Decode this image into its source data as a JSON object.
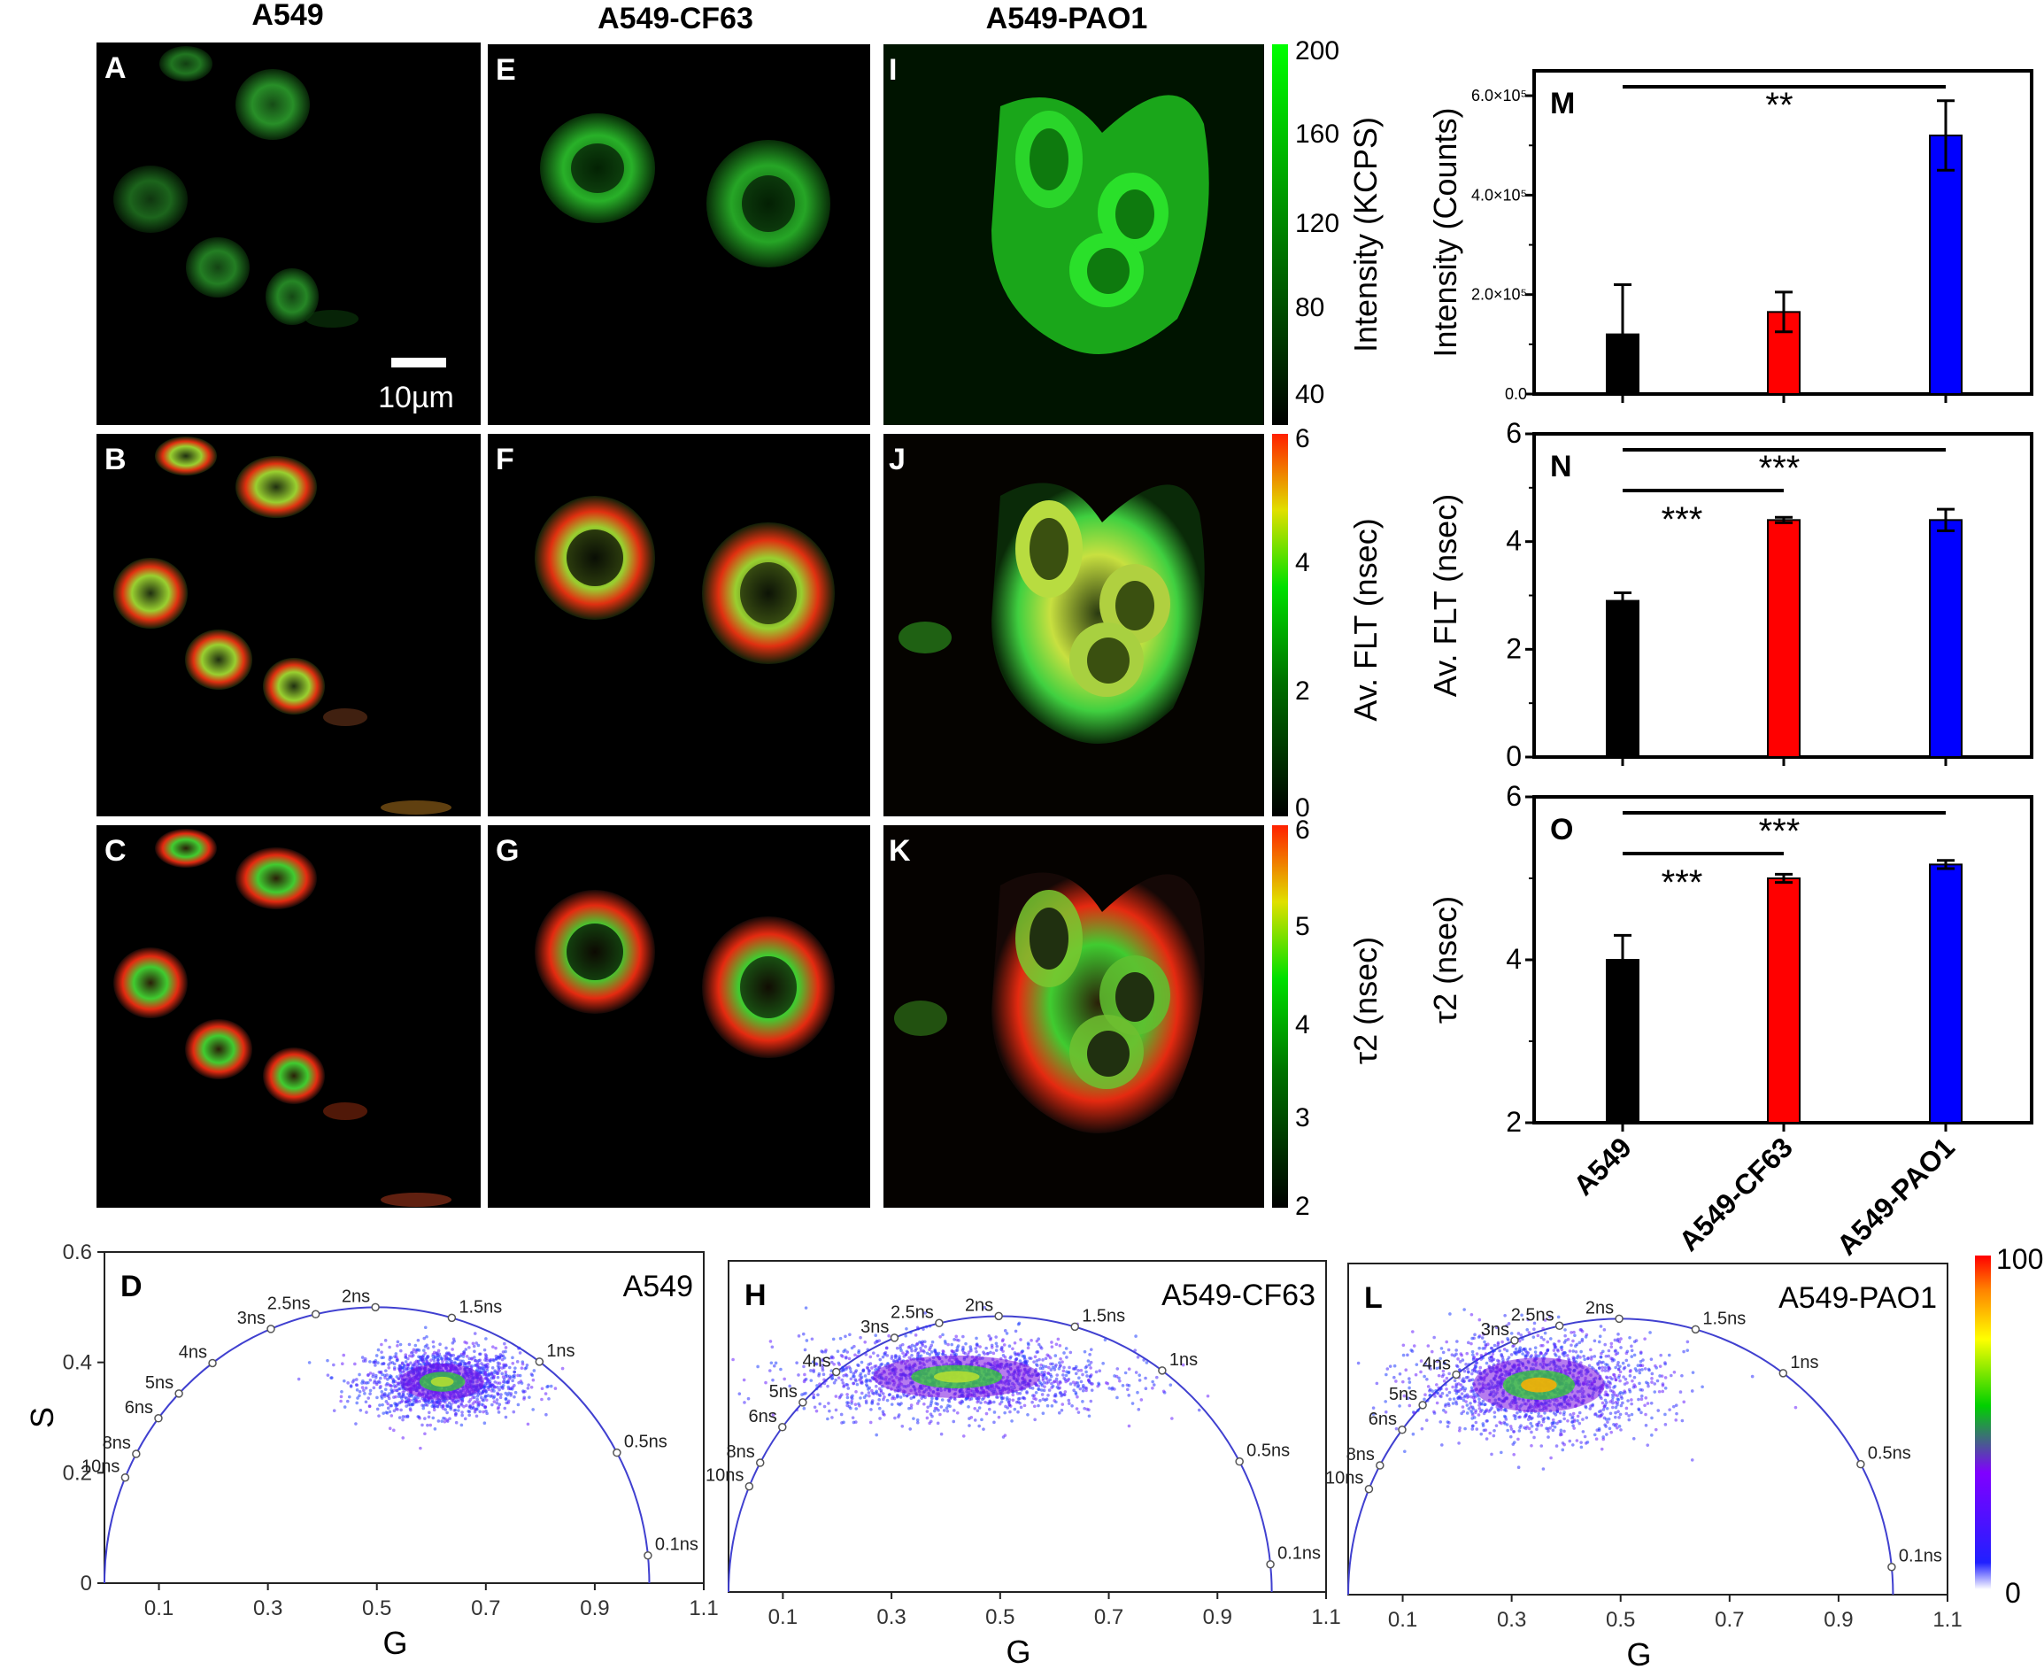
{
  "column_titles": [
    "A549",
    "A549-CF63",
    "A549-PAO1"
  ],
  "panel_letters": {
    "intensity_row": [
      "A",
      "E",
      "I"
    ],
    "avflt_row": [
      "B",
      "F",
      "J"
    ],
    "tau2_row": [
      "C",
      "G",
      "K"
    ]
  },
  "scale_bar_label": "10µm",
  "colorbars": [
    {
      "label": "Intensity (KCPS)",
      "ticks": [
        "200",
        "160",
        "120",
        "80",
        "40"
      ],
      "low": "#000000",
      "high": "#00ff00"
    },
    {
      "label": "Av. FLT (nsec)",
      "ticks": [
        "6",
        "4",
        "2",
        "0"
      ],
      "low": "#000000",
      "mid": "#00e000",
      "high": "#ff2000"
    },
    {
      "label": "τ2 (nsec)",
      "ticks": [
        "6",
        "5",
        "4",
        "3",
        "2"
      ],
      "low": "#000000",
      "mid": "#00e000",
      "high": "#ff2000"
    }
  ],
  "bar_categories": [
    "A549",
    "A549-CF63",
    "A549-PAO1"
  ],
  "bar_colors": [
    "#000000",
    "#ff0000",
    "#0000ff"
  ],
  "chart_data": [
    {
      "type": "bar",
      "letter": "M",
      "ylabel": "Intensity (Counts)",
      "ylim": [
        0,
        650000
      ],
      "ytick_labels": [
        "0.0",
        "2.0×10⁵",
        "4.0×10⁵",
        "6.0×10⁵"
      ],
      "ytick_values": [
        0,
        200000,
        400000,
        600000
      ],
      "values": [
        120000,
        165000,
        520000
      ],
      "errors": [
        100000,
        40000,
        70000
      ],
      "significance": [
        {
          "from": 0,
          "to": 2,
          "label": "**"
        }
      ]
    },
    {
      "type": "bar",
      "letter": "N",
      "ylabel": "Av. FLT (nsec)",
      "ylim": [
        0,
        6
      ],
      "ytick_labels": [
        "0",
        "2",
        "4",
        "6"
      ],
      "ytick_values": [
        0,
        2,
        4,
        6
      ],
      "values": [
        2.9,
        4.4,
        4.4
      ],
      "errors": [
        0.15,
        0.05,
        0.2
      ],
      "significance": [
        {
          "from": 0,
          "to": 2,
          "label": "***"
        },
        {
          "from": 0,
          "to": 1,
          "label": "***"
        }
      ]
    },
    {
      "type": "bar",
      "letter": "O",
      "ylabel": "τ2 (nsec)",
      "ylim": [
        2,
        6
      ],
      "ytick_labels": [
        "2",
        "4",
        "6"
      ],
      "ytick_values": [
        2,
        4,
        6
      ],
      "values": [
        4.0,
        5.0,
        5.17
      ],
      "errors": [
        0.3,
        0.05,
        0.05
      ],
      "significance": [
        {
          "from": 0,
          "to": 2,
          "label": "***"
        },
        {
          "from": 0,
          "to": 1,
          "label": "***"
        }
      ]
    },
    {
      "type": "scatter",
      "letter": "D",
      "name": "A549",
      "xlabel": "G",
      "ylabel": "S",
      "xlim": [
        0,
        1.1
      ],
      "ylim": [
        0,
        0.6
      ],
      "cloud_center": [
        0.62,
        0.365
      ],
      "cloud_spread": [
        0.07,
        0.03
      ]
    },
    {
      "type": "scatter",
      "letter": "H",
      "name": "A549-CF63",
      "xlabel": "G",
      "ylabel": "S",
      "xlim": [
        0,
        1.1
      ],
      "ylim": [
        0,
        0.6
      ],
      "cloud_center": [
        0.42,
        0.39
      ],
      "cloud_spread": [
        0.14,
        0.035
      ]
    },
    {
      "type": "scatter",
      "letter": "L",
      "name": "A549-PAO1",
      "xlabel": "G",
      "ylabel": "S",
      "xlim": [
        0,
        1.1
      ],
      "ylim": [
        0,
        0.6
      ],
      "cloud_center": [
        0.35,
        0.38
      ],
      "cloud_spread": [
        0.11,
        0.045
      ]
    }
  ],
  "phasor_axes": {
    "x_ticks": [
      "0.1",
      "0.3",
      "0.5",
      "0.7",
      "0.9",
      "1.1"
    ],
    "x_tick_values": [
      0.1,
      0.3,
      0.5,
      0.7,
      0.9,
      1.1
    ],
    "y_ticks": [
      "0",
      "0.2",
      "0.4",
      "0.6"
    ],
    "y_tick_values": [
      0,
      0.2,
      0.4,
      0.6
    ]
  },
  "lifetime_markers": [
    {
      "label": "10ns",
      "tau": 10
    },
    {
      "label": "8ns",
      "tau": 8
    },
    {
      "label": "6ns",
      "tau": 6
    },
    {
      "label": "5ns",
      "tau": 5
    },
    {
      "label": "4ns",
      "tau": 4
    },
    {
      "label": "3ns",
      "tau": 3
    },
    {
      "label": "2.5ns",
      "tau": 2.5
    },
    {
      "label": "2ns",
      "tau": 2
    },
    {
      "label": "1.5ns",
      "tau": 1.5
    },
    {
      "label": "1ns",
      "tau": 1
    },
    {
      "label": "0.5ns",
      "tau": 0.5
    },
    {
      "label": "0.1ns",
      "tau": 0.1
    }
  ],
  "phasor_colorbar": {
    "max_label": "100",
    "min_label": "0"
  }
}
